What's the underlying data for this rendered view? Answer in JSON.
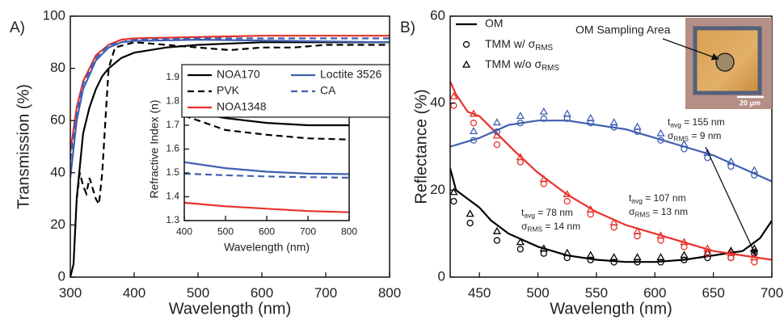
{
  "chart_data": [
    {
      "type": "line",
      "panel_label": "A)",
      "xlabel": "Wavelength (nm)",
      "ylabel": "Transmission (%)",
      "xlim": [
        300,
        800
      ],
      "ylim": [
        0,
        100
      ],
      "xticks": [
        300,
        400,
        500,
        600,
        700,
        800
      ],
      "yticks": [
        0,
        20,
        40,
        60,
        80,
        100
      ],
      "series": [
        {
          "color": "#000000",
          "linestyle": "solid",
          "x": [
            300,
            305,
            310,
            320,
            330,
            340,
            350,
            360,
            380,
            400,
            450,
            500,
            600,
            700,
            800
          ],
          "values": [
            0,
            5,
            30,
            55,
            65,
            72,
            77,
            80,
            84,
            86,
            88,
            89,
            90,
            90,
            90
          ]
        },
        {
          "color": "#000000",
          "linestyle": "dashed",
          "x": [
            310,
            315,
            320,
            325,
            330,
            340,
            345,
            350,
            355,
            360,
            370,
            400,
            450,
            500,
            550,
            600,
            650,
            700,
            800
          ],
          "values": [
            30,
            40,
            35,
            32,
            38,
            30,
            28,
            40,
            60,
            80,
            88,
            90,
            89,
            88,
            87,
            88,
            88,
            89,
            89
          ]
        },
        {
          "color": "#e8312a",
          "linestyle": "solid",
          "x": [
            300,
            310,
            320,
            340,
            360,
            380,
            400,
            500,
            600,
            800
          ],
          "values": [
            48,
            65,
            75,
            85,
            89,
            91,
            91.5,
            92,
            92.5,
            92.5
          ]
        },
        {
          "color": "#3f5fb0",
          "linestyle": "solid",
          "x": [
            300,
            310,
            320,
            340,
            360,
            380,
            400,
            500,
            800
          ],
          "values": [
            38,
            60,
            72,
            83,
            88,
            90,
            90.5,
            91,
            90
          ]
        },
        {
          "color": "#3f5fb0",
          "linestyle": "dashed",
          "x": [
            300,
            310,
            320,
            340,
            360,
            400,
            500,
            800
          ],
          "values": [
            45,
            63,
            74,
            84,
            89,
            91,
            91.5,
            91.5
          ]
        }
      ]
    },
    {
      "type": "line",
      "xlabel": "Wavelength (nm)",
      "ylabel": "Refractive Index (n)",
      "xlim": [
        400,
        800
      ],
      "ylim": [
        1.3,
        1.9
      ],
      "xticks": [
        400,
        500,
        600,
        700,
        800
      ],
      "yticks": [
        1.3,
        1.4,
        1.5,
        1.6,
        1.7,
        1.8,
        1.9
      ],
      "series": [
        {
          "name": "NOA170",
          "color": "#000000",
          "linestyle": "solid",
          "x": [
            400,
            500,
            600,
            700,
            800
          ],
          "values": [
            1.76,
            1.73,
            1.71,
            1.7,
            1.7
          ]
        },
        {
          "name": "PVK",
          "color": "#000000",
          "linestyle": "dashed",
          "x": [
            400,
            500,
            600,
            700,
            800
          ],
          "values": [
            1.74,
            1.68,
            1.66,
            1.645,
            1.64
          ]
        },
        {
          "name": "NOA1348",
          "color": "#e8312a",
          "linestyle": "solid",
          "x": [
            400,
            500,
            600,
            700,
            800
          ],
          "values": [
            1.375,
            1.36,
            1.35,
            1.34,
            1.335
          ]
        },
        {
          "name": "Loctite 3526",
          "color": "#3f5fb0",
          "linestyle": "solid",
          "x": [
            400,
            500,
            600,
            700,
            800
          ],
          "values": [
            1.545,
            1.52,
            1.505,
            1.497,
            1.495
          ]
        },
        {
          "name": "CA",
          "color": "#3f5fb0",
          "linestyle": "dashed",
          "x": [
            400,
            500,
            600,
            700,
            800
          ],
          "values": [
            1.497,
            1.49,
            1.485,
            1.482,
            1.48
          ]
        }
      ]
    },
    {
      "type": "reflectance",
      "panel_label": "B)",
      "xlabel": "Wavelength (nm)",
      "ylabel": "Reflectance (%)",
      "xlim": [
        425,
        700
      ],
      "ylim": [
        0,
        60
      ],
      "xticks": [
        450,
        500,
        550,
        600,
        650,
        700
      ],
      "yticks": [
        0,
        20,
        40,
        60
      ],
      "legend": [
        {
          "text": "OM",
          "marker": "line"
        },
        {
          "text": "TMM w/ σ",
          "subscript": "RMS",
          "marker": "circle"
        },
        {
          "text": "TMM w/o σ",
          "subscript": "RMS",
          "marker": "triangle"
        }
      ],
      "groups": [
        {
          "color": "#000000",
          "om": {
            "x": [
              425,
              430,
              440,
              450,
              460,
              475,
              500,
              525,
              550,
              575,
              600,
              625,
              650,
              675,
              690,
              700
            ],
            "values": [
              25,
              20,
              18,
              16,
              13,
              10,
              7,
              5,
              4,
              3.5,
              3.5,
              4,
              5,
              6,
              9,
              13
            ]
          },
          "tmm_with": {
            "x": [
              428,
              442,
              465,
              485,
              505,
              525,
              545,
              565,
              585,
              605,
              625,
              645,
              665,
              685
            ],
            "values": [
              18,
              13,
              9,
              7,
              6,
              5,
              4.5,
              4,
              4,
              4,
              4.5,
              5,
              5,
              6
            ]
          },
          "tmm_without": {
            "x": [
              428,
              442,
              465,
              485,
              505,
              525,
              545,
              565,
              585,
              605,
              625,
              645,
              665,
              685
            ],
            "values": [
              19,
              14,
              10,
              7.5,
              6,
              5,
              4.5,
              4,
              4,
              4,
              4.5,
              5,
              5.5,
              6
            ]
          },
          "annotation": [
            {
              "text": "t",
              "subscript": "avg",
              "rest": " = 78 nm"
            },
            {
              "text": "σ",
              "subscript": "RMS",
              "rest": " = 14 nm"
            }
          ]
        },
        {
          "color": "#e8312a",
          "om": {
            "x": [
              425,
              430,
              440,
              450,
              465,
              480,
              500,
              525,
              550,
              575,
              600,
              625,
              650,
              675,
              700
            ],
            "values": [
              45,
              42,
              38,
              37,
              33,
              29,
              24,
              19,
              15,
              12,
              10,
              8,
              6,
              5,
              4
            ]
          },
          "tmm_with": {
            "x": [
              428,
              445,
              465,
              485,
              505,
              525,
              545,
              565,
              585,
              605,
              625,
              645,
              665,
              685
            ],
            "values": [
              40,
              36,
              31,
              27,
              22,
              18,
              15,
              12,
              10,
              9,
              7.5,
              6,
              5,
              4
            ]
          },
          "tmm_without": {
            "x": [
              428,
              445,
              465,
              485,
              505,
              525,
              545,
              565,
              585,
              605,
              625,
              645,
              665,
              685
            ],
            "values": [
              41,
              37,
              32,
              27,
              22,
              18.5,
              15,
              12,
              10,
              9,
              7.5,
              6,
              5,
              4
            ]
          },
          "annotation": [
            {
              "text": "t",
              "subscript": "avg",
              "rest": " = 107 nm"
            },
            {
              "text": "σ",
              "subscript": "RMS",
              "rest": " = 13 nm"
            }
          ]
        },
        {
          "color": "#3f5fb0",
          "om": {
            "x": [
              425,
              450,
              475,
              500,
              525,
              550,
              575,
              600,
              625,
              650,
              675,
              700
            ],
            "values": [
              30,
              32,
              35,
              36,
              36,
              35,
              34,
              32,
              30,
              28,
              25,
              22
            ]
          },
          "tmm_with": {
            "x": [
              445,
              465,
              485,
              505,
              525,
              545,
              565,
              585,
              605,
              625,
              645,
              665,
              685
            ],
            "values": [
              32,
              34,
              36,
              37,
              37,
              36,
              35,
              34,
              32,
              30,
              28,
              26,
              24
            ]
          },
          "tmm_without": {
            "x": [
              445,
              465,
              485,
              505,
              525,
              545,
              565,
              585,
              605,
              625,
              645,
              665,
              685
            ],
            "values": [
              33,
              35,
              36.5,
              37.5,
              37,
              36,
              35,
              34,
              32.5,
              30,
              28,
              26,
              24
            ]
          },
          "annotation": [
            {
              "text": "t",
              "subscript": "avg",
              "rest": " = 155 nm"
            },
            {
              "text": "σ",
              "subscript": "RMS",
              "rest": " = 9 nm"
            }
          ]
        }
      ],
      "inset_image": {
        "title": "OM Sampling Area",
        "scale_bar": "20 μm"
      }
    }
  ]
}
